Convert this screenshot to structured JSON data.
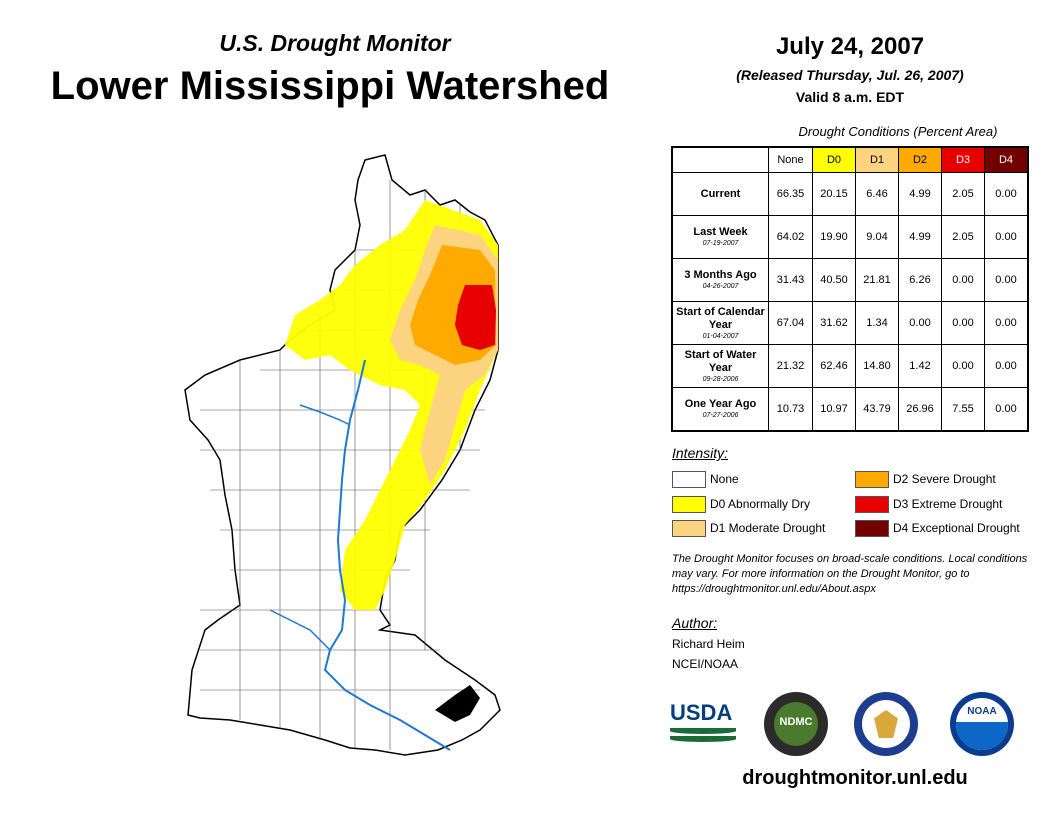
{
  "header": {
    "subtitle": "U.S. Drought Monitor",
    "title": "Lower Mississippi Watershed",
    "date": "July 24, 2007",
    "released": "(Released Thursday, Jul. 26, 2007)",
    "valid": "Valid 8 a.m. EDT"
  },
  "table": {
    "caption": "Drought Conditions (Percent Area)",
    "columns": [
      "None",
      "D0",
      "D1",
      "D2",
      "D3",
      "D4"
    ],
    "column_colors": [
      "#ffffff",
      "#ffff00",
      "#fcd37f",
      "#ffaa00",
      "#e60000",
      "#730000"
    ],
    "rows": [
      {
        "label": "Current",
        "date": "",
        "values": [
          "66.35",
          "20.15",
          "6.46",
          "4.99",
          "2.05",
          "0.00"
        ]
      },
      {
        "label": "Last Week",
        "date": "07-19-2007",
        "values": [
          "64.02",
          "19.90",
          "9.04",
          "4.99",
          "2.05",
          "0.00"
        ]
      },
      {
        "label": "3 Months Ago",
        "date": "04-26-2007",
        "values": [
          "31.43",
          "40.50",
          "21.81",
          "6.26",
          "0.00",
          "0.00"
        ]
      },
      {
        "label": "Start of Calendar Year",
        "date": "01-04-2007",
        "values": [
          "67.04",
          "31.62",
          "1.34",
          "0.00",
          "0.00",
          "0.00"
        ]
      },
      {
        "label": "Start of Water Year",
        "date": "09-28-2006",
        "values": [
          "21.32",
          "62.46",
          "14.80",
          "1.42",
          "0.00",
          "0.00"
        ]
      },
      {
        "label": "One Year Ago",
        "date": "07-27-2006",
        "values": [
          "10.73",
          "10.97",
          "43.79",
          "26.96",
          "7.55",
          "0.00"
        ]
      }
    ]
  },
  "legend": {
    "title": "Intensity:",
    "items": [
      {
        "label": "None",
        "color": "#ffffff"
      },
      {
        "label": "D0 Abnormally Dry",
        "color": "#ffff00"
      },
      {
        "label": "D1 Moderate Drought",
        "color": "#fcd37f"
      },
      {
        "label": "D2 Severe Drought",
        "color": "#ffaa00"
      },
      {
        "label": "D3 Extreme Drought",
        "color": "#e60000"
      },
      {
        "label": "D4 Exceptional Drought",
        "color": "#730000"
      }
    ]
  },
  "note": "The Drought Monitor focuses on broad-scale conditions. Local conditions may vary. For more information on the Drought Monitor, go to https://droughtmonitor.unl.edu/About.aspx",
  "author": {
    "title": "Author:",
    "name": "Richard Heim",
    "org": "NCEI/NOAA"
  },
  "logos": {
    "usda": "USDA",
    "ndmc": "NDMC",
    "noaa": "NOAA"
  },
  "footer_url": "droughtmonitor.unl.edu"
}
